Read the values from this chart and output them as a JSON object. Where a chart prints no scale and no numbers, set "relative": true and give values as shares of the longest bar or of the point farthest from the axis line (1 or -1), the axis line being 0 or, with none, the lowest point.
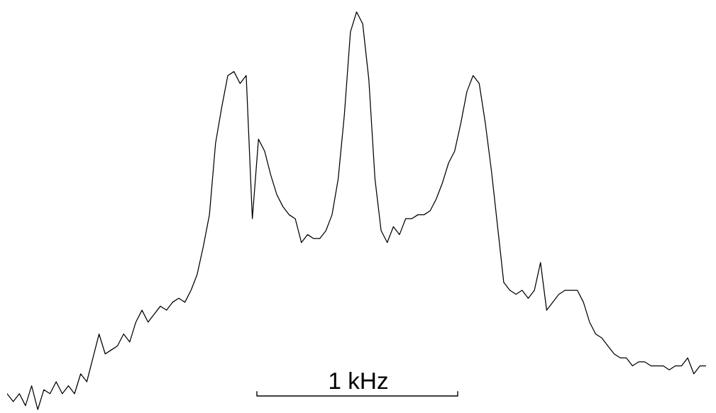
{
  "chart_data": {
    "type": "line",
    "relative": true,
    "marker": "none",
    "line_style": "solid",
    "annotations": [
      "1 kHz"
    ],
    "categories": [
      null,
      null,
      null,
      null,
      null,
      null,
      null,
      null,
      null,
      null,
      null,
      null,
      null,
      null,
      null,
      null,
      null,
      null,
      null,
      null,
      null,
      null,
      null,
      null,
      null,
      null,
      null,
      null,
      null,
      null,
      null,
      null,
      null,
      null,
      null,
      null,
      null,
      null,
      null,
      null,
      null,
      null,
      null,
      null,
      null,
      null,
      null,
      null,
      null,
      null,
      null,
      null,
      null,
      null,
      null,
      null,
      null,
      null,
      null,
      null,
      null,
      null,
      null,
      null,
      null,
      null,
      null,
      null,
      null,
      null,
      null,
      null,
      null,
      null,
      null,
      null,
      null,
      null,
      null,
      null,
      null,
      null,
      null,
      null,
      null,
      null,
      null,
      null,
      null,
      null,
      null,
      null,
      null,
      null,
      null,
      null,
      null,
      null,
      null,
      null,
      null,
      null,
      null,
      null,
      null,
      null,
      null,
      null,
      null,
      null,
      null,
      null,
      null,
      null,
      null
    ],
    "series": [
      {
        "color": "#000000",
        "values": [
          0.04,
          0.02,
          0.04,
          0.01,
          0.06,
          0,
          0.05,
          0.04,
          0.07,
          0.04,
          0.06,
          0.04,
          0.09,
          0.07,
          0.13,
          0.19,
          0.14,
          0.15,
          0.16,
          0.19,
          0.17,
          0.22,
          0.25,
          0.22,
          0.24,
          0.26,
          0.25,
          0.27,
          0.28,
          0.27,
          0.3,
          0.34,
          0.41,
          0.49,
          0.67,
          0.76,
          0.84,
          0.85,
          0.82,
          0.84,
          0.48,
          0.68,
          0.65,
          0.59,
          0.54,
          0.51,
          0.49,
          0.48,
          0.42,
          0.44,
          0.43,
          0.43,
          0.45,
          0.49,
          0.58,
          0.74,
          0.95,
          1,
          0.97,
          0.83,
          0.58,
          0.45,
          0.42,
          0.46,
          0.44,
          0.48,
          0.48,
          0.49,
          0.49,
          0.5,
          0.53,
          0.57,
          0.62,
          0.65,
          0.72,
          0.8,
          0.84,
          0.82,
          0.72,
          0.6,
          0.46,
          0.32,
          0.3,
          0.29,
          0.3,
          0.28,
          0.3,
          0.37,
          0.25,
          0.27,
          0.29,
          0.3,
          0.3,
          0.3,
          0.27,
          0.22,
          0.19,
          0.18,
          0.16,
          0.14,
          0.13,
          0.13,
          0.11,
          0.12,
          0.12,
          0.11,
          0.11,
          0.11,
          0.1,
          0.11,
          0.11,
          0.13,
          0.09,
          0.11,
          0.11
        ]
      }
    ]
  }
}
